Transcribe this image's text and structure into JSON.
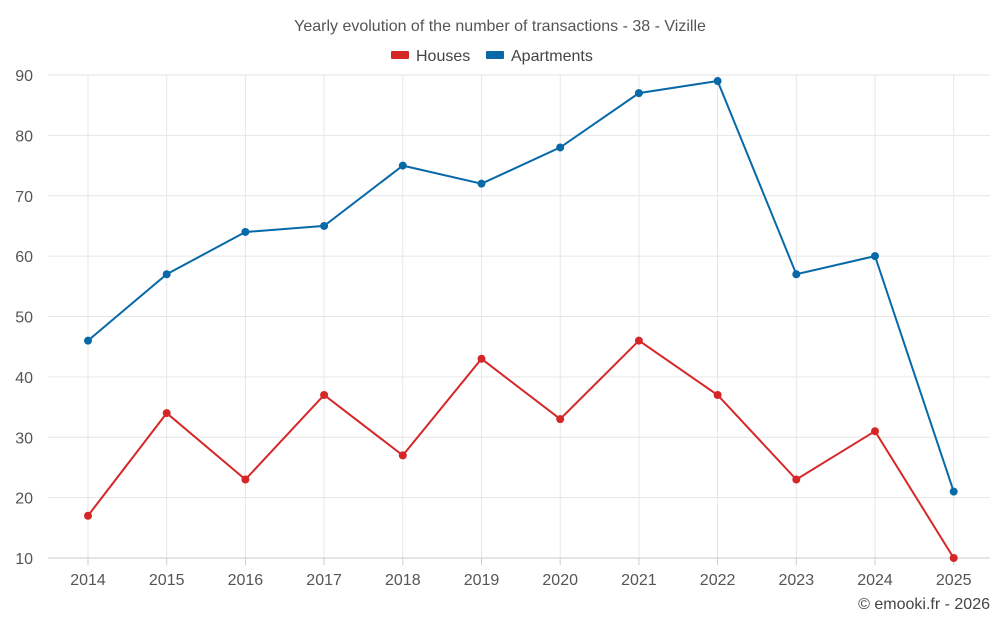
{
  "chart_data": {
    "type": "line",
    "title": "Yearly evolution of the number of transactions - 38 - Vizille",
    "categories": [
      "2014",
      "2015",
      "2016",
      "2017",
      "2018",
      "2019",
      "2020",
      "2021",
      "2022",
      "2023",
      "2024",
      "2025"
    ],
    "series": [
      {
        "name": "Houses",
        "color": "#d62728",
        "values": [
          17,
          34,
          23,
          37,
          27,
          43,
          33,
          46,
          37,
          23,
          31,
          10
        ]
      },
      {
        "name": "Apartments",
        "color": "#0869a8",
        "values": [
          46,
          57,
          64,
          65,
          75,
          72,
          78,
          87,
          89,
          57,
          60,
          21
        ]
      }
    ],
    "xlabel": "",
    "ylabel": "",
    "ylim": [
      10,
      90
    ],
    "yticks": [
      10,
      20,
      30,
      40,
      50,
      60,
      70,
      80,
      90
    ],
    "grid": true,
    "legend": "top-center"
  },
  "credit": "© emooki.fr - 2026"
}
